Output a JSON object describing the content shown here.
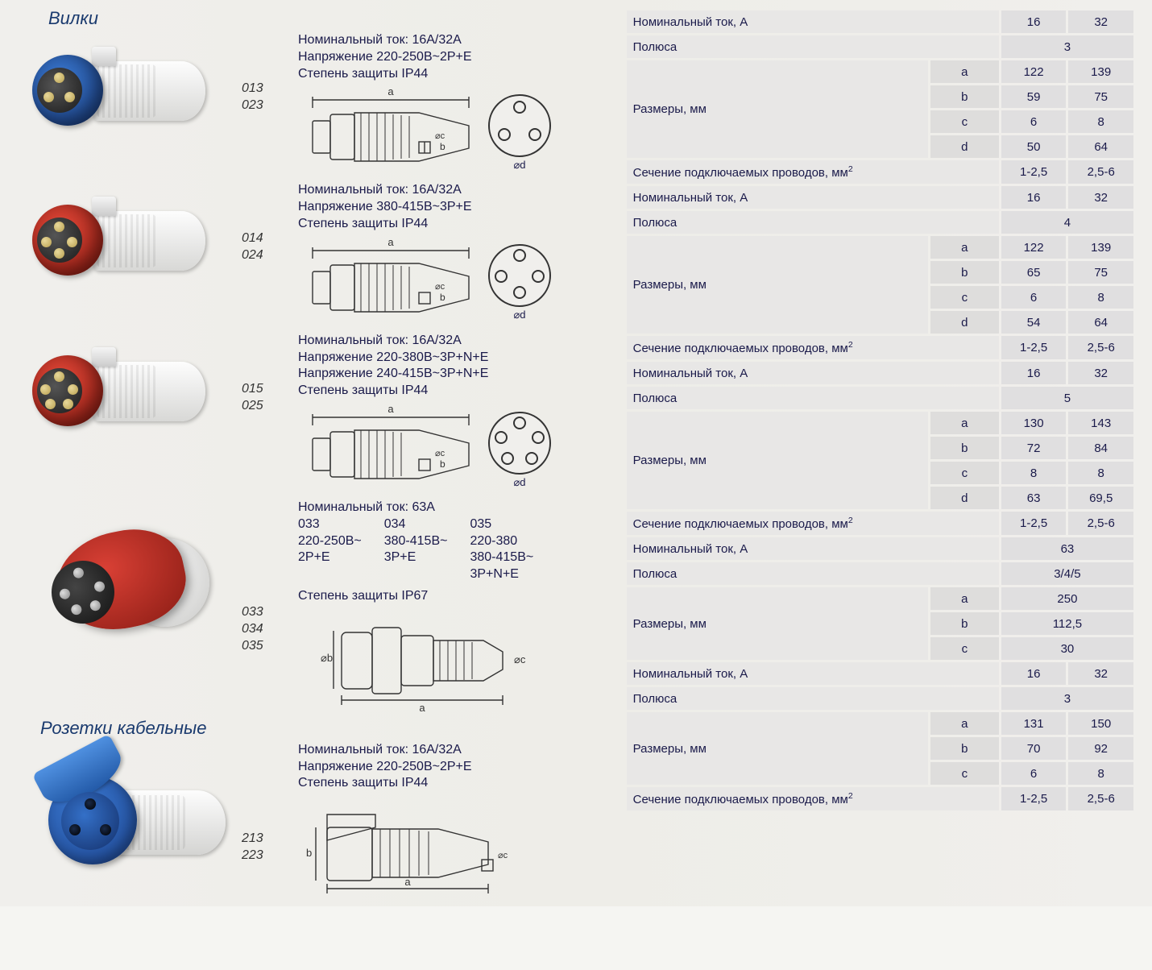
{
  "titles": {
    "plugs": "Вилки",
    "cable_sockets": "Розетки кабельные"
  },
  "labels": {
    "nominal_current": "Номинальный ток",
    "voltage": "Напряжение",
    "protection": "Степень защиты",
    "nominal_current_a": "Номинальный ток, А",
    "poles": "Полюса",
    "dimensions_mm": "Размеры, мм",
    "wire_section": "Сечение подключаемых проводов, мм",
    "d_diam": "⌀d",
    "b_diam": "⌀b",
    "c_diam": "⌀c",
    "dim_a": "a",
    "dim_b": "b"
  },
  "products": [
    {
      "id": "p1",
      "color": "#1f55c4",
      "pin_count": 3,
      "codes": [
        "013",
        "023"
      ],
      "specs": [
        "Номинальный ток: 16А/32А",
        "Напряжение 220-250В~2Р+Е",
        "Степень защиты IP44"
      ]
    },
    {
      "id": "p2",
      "color": "#d13228",
      "pin_count": 4,
      "codes": [
        "014",
        "024"
      ],
      "specs": [
        "Номинальный ток: 16А/32А",
        "Напряжение 380-415В~3Р+Е",
        "Степень защиты IP44"
      ]
    },
    {
      "id": "p3",
      "color": "#d13228",
      "pin_count": 5,
      "codes": [
        "015",
        "025"
      ],
      "specs": [
        "Номинальный ток: 16А/32А",
        "Напряжение 220-380В~3Р+N+Е",
        "Напряжение 240-415В~3Р+N+Е",
        "Степень защиты IP44"
      ]
    }
  ],
  "product63": {
    "header": "Номинальный ток: 63А",
    "cols": [
      {
        "code": "033",
        "v1": "220-250В~",
        "v2": "2Р+Е"
      },
      {
        "code": "034",
        "v1": "380-415В~",
        "v2": "3Р+Е"
      },
      {
        "code": "035",
        "v1": "220-380",
        "v2": "380-415В~",
        "v3": "3Р+N+Е"
      }
    ],
    "protection": "Степень защиты IP67",
    "codes": [
      "033",
      "034",
      "035"
    ]
  },
  "socket": {
    "codes": [
      "213",
      "223"
    ],
    "specs": [
      "Номинальный ток: 16А/32А",
      "Напряжение 220-250В~2Р+Е",
      "Степень защиты IP44"
    ]
  },
  "tables": [
    {
      "nominal": [
        "16",
        "32"
      ],
      "poles": "3",
      "dims": {
        "a": [
          "122",
          "139"
        ],
        "b": [
          "59",
          "75"
        ],
        "c": [
          "6",
          "8"
        ],
        "d": [
          "50",
          "64"
        ]
      },
      "wire": [
        "1-2,5",
        "2,5-6"
      ]
    },
    {
      "nominal": [
        "16",
        "32"
      ],
      "poles": "4",
      "dims": {
        "a": [
          "122",
          "139"
        ],
        "b": [
          "65",
          "75"
        ],
        "c": [
          "6",
          "8"
        ],
        "d": [
          "54",
          "64"
        ]
      },
      "wire": [
        "1-2,5",
        "2,5-6"
      ]
    },
    {
      "nominal": [
        "16",
        "32"
      ],
      "poles": "5",
      "dims": {
        "a": [
          "130",
          "143"
        ],
        "b": [
          "72",
          "84"
        ],
        "c": [
          "8",
          "8"
        ],
        "d": [
          "63",
          "69,5"
        ]
      },
      "wire": [
        "1-2,5",
        "2,5-6"
      ]
    },
    {
      "nominal_single": "63",
      "poles": "3/4/5",
      "dims_single": {
        "a": "250",
        "b": "112,5",
        "c": "30"
      }
    },
    {
      "nominal": [
        "16",
        "32"
      ],
      "poles": "3",
      "dims3": {
        "a": [
          "131",
          "150"
        ],
        "b": [
          "70",
          "92"
        ],
        "c": [
          "6",
          "8"
        ]
      },
      "wire": [
        "1-2,5",
        "2,5-6"
      ]
    }
  ]
}
